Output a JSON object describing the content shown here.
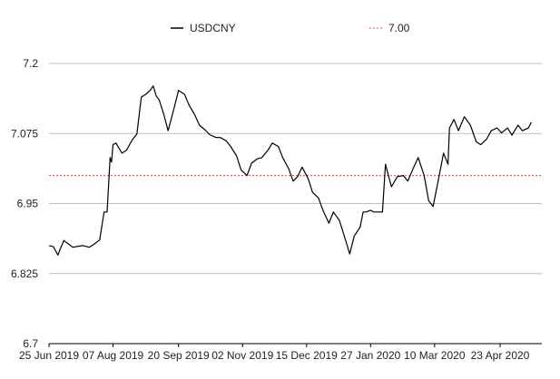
{
  "chart_data": {
    "type": "line",
    "title": "",
    "xlabel": "",
    "ylabel": "",
    "ylim": [
      6.7,
      7.2
    ],
    "y_ticks": [
      "7.2",
      "7.075",
      "6.95",
      "6.825",
      "6.7"
    ],
    "x_ticks": [
      "25 Jun 2019",
      "07 Aug 2019",
      "20 Sep 2019",
      "02 Nov 2019",
      "15 Dec 2019",
      "27 Jan 2020",
      "10 Mar 2020",
      "23 Apr 2020"
    ],
    "grid": "horizontal",
    "legend_position": "top",
    "series": [
      {
        "name": "USDCNY",
        "color": "#000000",
        "style": "solid",
        "x": [
          "2019-06-25",
          "2019-06-28",
          "2019-07-01",
          "2019-07-03",
          "2019-07-05",
          "2019-07-08",
          "2019-07-11",
          "2019-07-15",
          "2019-07-18",
          "2019-07-22",
          "2019-07-25",
          "2019-07-29",
          "2019-08-01",
          "2019-08-03",
          "2019-08-05",
          "2019-08-06",
          "2019-08-07",
          "2019-08-09",
          "2019-08-13",
          "2019-08-16",
          "2019-08-20",
          "2019-08-23",
          "2019-08-26",
          "2019-08-29",
          "2019-09-01",
          "2019-09-03",
          "2019-09-05",
          "2019-09-07",
          "2019-09-10",
          "2019-09-13",
          "2019-09-17",
          "2019-09-20",
          "2019-09-24",
          "2019-09-27",
          "2019-10-01",
          "2019-10-04",
          "2019-10-08",
          "2019-10-11",
          "2019-10-15",
          "2019-10-18",
          "2019-10-22",
          "2019-10-25",
          "2019-10-29",
          "2019-11-01",
          "2019-11-05",
          "2019-11-08",
          "2019-11-12",
          "2019-11-15",
          "2019-11-19",
          "2019-11-22",
          "2019-11-26",
          "2019-11-29",
          "2019-12-03",
          "2019-12-06",
          "2019-12-09",
          "2019-12-12",
          "2019-12-16",
          "2019-12-19",
          "2019-12-23",
          "2019-12-26",
          "2019-12-30",
          "2020-01-02",
          "2020-01-06",
          "2020-01-09",
          "2020-01-13",
          "2020-01-16",
          "2020-01-20",
          "2020-01-22",
          "2020-01-24",
          "2020-01-27",
          "2020-01-29",
          "2020-02-01",
          "2020-02-03",
          "2020-02-04",
          "2020-02-06",
          "2020-02-10",
          "2020-02-14",
          "2020-02-18",
          "2020-02-21",
          "2020-02-25",
          "2020-02-28",
          "2020-03-03",
          "2020-03-06",
          "2020-03-09",
          "2020-03-12",
          "2020-03-16",
          "2020-03-19",
          "2020-03-20",
          "2020-03-23",
          "2020-03-26",
          "2020-03-30",
          "2020-04-03",
          "2020-04-07",
          "2020-04-10",
          "2020-04-14",
          "2020-04-17",
          "2020-04-21",
          "2020-04-24",
          "2020-04-28",
          "2020-05-01",
          "2020-05-05",
          "2020-05-08",
          "2020-05-12",
          "2020-05-14"
        ],
        "values": [
          6.875,
          6.873,
          6.858,
          6.872,
          6.884,
          6.878,
          6.872,
          6.874,
          6.875,
          6.872,
          6.877,
          6.885,
          6.935,
          6.935,
          7.032,
          7.024,
          7.055,
          7.058,
          7.04,
          7.045,
          7.064,
          7.074,
          7.14,
          7.145,
          7.152,
          7.16,
          7.142,
          7.135,
          7.11,
          7.08,
          7.12,
          7.152,
          7.145,
          7.126,
          7.108,
          7.09,
          7.081,
          7.073,
          7.068,
          7.068,
          7.062,
          7.052,
          7.035,
          7.01,
          7.0,
          7.022,
          7.03,
          7.032,
          7.045,
          7.058,
          7.052,
          7.032,
          7.012,
          6.99,
          6.998,
          7.015,
          6.995,
          6.97,
          6.96,
          6.938,
          6.915,
          6.935,
          6.92,
          6.895,
          6.86,
          6.892,
          6.908,
          6.935,
          6.935,
          6.938,
          6.935,
          6.935,
          6.935,
          6.935,
          7.02,
          6.98,
          6.998,
          7.0,
          6.99,
          7.015,
          7.032,
          7.0,
          6.955,
          6.945,
          6.985,
          7.04,
          7.02,
          7.085,
          7.1,
          7.08,
          7.105,
          7.09,
          7.06,
          7.055,
          7.065,
          7.08,
          7.085,
          7.076,
          7.085,
          7.072,
          7.09,
          7.08,
          7.085,
          7.095
        ]
      },
      {
        "name": "7.00",
        "color": "#e8453c",
        "style": "dashed",
        "value": 7.0
      }
    ]
  }
}
